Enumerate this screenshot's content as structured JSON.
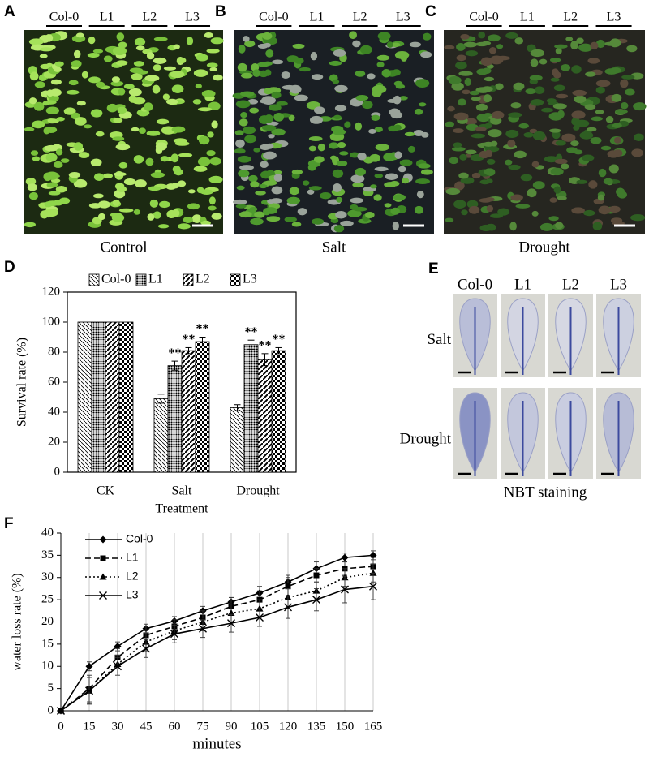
{
  "panels": [
    {
      "letter": "A",
      "columns": [
        "Col-0",
        "L1",
        "L2",
        "L3"
      ],
      "caption": "Control"
    },
    {
      "letter": "B",
      "columns": [
        "Col-0",
        "L1",
        "L2",
        "L3"
      ],
      "caption": "Salt"
    },
    {
      "letter": "C",
      "columns": [
        "Col-0",
        "L1",
        "L2",
        "L3"
      ],
      "caption": "Drought"
    }
  ],
  "nbt": {
    "letter": "E",
    "columns": [
      "Col-0",
      "L1",
      "L2",
      "L3"
    ],
    "rows": [
      "Salt",
      "Drought"
    ],
    "caption": "NBT staining"
  },
  "chart_data": [
    {
      "type": "bar",
      "panel_label": "D",
      "ylabel": "Survival rate (%)",
      "xlabel": "Treatment",
      "categories": [
        "CK",
        "Salt",
        "Drought"
      ],
      "ylim": [
        0,
        120
      ],
      "yticks": [
        0,
        20,
        40,
        60,
        80,
        100,
        120
      ],
      "series": [
        {
          "name": "Col-0",
          "color": "#000000",
          "hatch": "back",
          "values": [
            100,
            49,
            43
          ],
          "errors": [
            0,
            3,
            2
          ],
          "significance": [
            null,
            null,
            null
          ]
        },
        {
          "name": "L1",
          "color": "#000000",
          "hatch": "dots",
          "values": [
            100,
            71,
            85
          ],
          "errors": [
            0,
            3,
            3
          ],
          "significance": [
            null,
            "**",
            "**"
          ]
        },
        {
          "name": "L2",
          "color": "#000000",
          "hatch": "fwd",
          "values": [
            100,
            81,
            75
          ],
          "errors": [
            0,
            2,
            4
          ],
          "significance": [
            null,
            "**",
            "**"
          ]
        },
        {
          "name": "L3",
          "color": "#000000",
          "hatch": "checker",
          "values": [
            100,
            87,
            81
          ],
          "errors": [
            0,
            3,
            2
          ],
          "significance": [
            null,
            "**",
            "**"
          ]
        }
      ]
    },
    {
      "type": "line",
      "panel_label": "F",
      "ylabel": "water loss rate (%)",
      "xlabel": "minutes",
      "x": [
        0,
        15,
        30,
        45,
        60,
        75,
        90,
        105,
        120,
        135,
        150,
        165
      ],
      "xlim": [
        0,
        165
      ],
      "xticks": [
        0,
        15,
        30,
        45,
        60,
        75,
        90,
        105,
        120,
        135,
        150,
        165
      ],
      "ylim": [
        0,
        40
      ],
      "yticks": [
        0,
        5,
        10,
        15,
        20,
        25,
        30,
        35,
        40
      ],
      "grid": true,
      "series": [
        {
          "name": "Col-0",
          "color": "#000000",
          "dash": "solid",
          "marker": "diamond",
          "values": [
            0,
            10,
            14.5,
            18.5,
            20.2,
            22.5,
            24.5,
            26.5,
            29,
            32,
            34.5,
            35
          ],
          "errors": [
            0,
            1,
            1,
            1,
            1,
            1,
            1,
            1.5,
            1.5,
            1.5,
            1,
            1
          ]
        },
        {
          "name": "L1",
          "color": "#000000",
          "dash": "dashed",
          "marker": "square",
          "values": [
            0,
            5,
            12,
            17,
            19,
            21,
            23.5,
            25,
            28,
            30.5,
            32,
            32.5
          ],
          "errors": [
            0,
            3,
            2,
            2,
            1.5,
            1.5,
            2,
            2,
            2,
            1.5,
            1.5,
            2
          ]
        },
        {
          "name": "L2",
          "color": "#000000",
          "dash": "dotted",
          "marker": "triangle",
          "values": [
            0,
            4.5,
            10.5,
            15.5,
            18,
            20,
            22,
            23,
            25.5,
            27,
            30,
            31
          ],
          "errors": [
            0,
            3,
            2,
            2,
            2,
            2,
            2,
            2,
            2,
            2,
            2,
            2
          ]
        },
        {
          "name": "L3",
          "color": "#000000",
          "dash": "solid",
          "marker": "x",
          "values": [
            0,
            4.5,
            10,
            14,
            17.3,
            18.5,
            19.7,
            21,
            23.3,
            25,
            27.3,
            28
          ],
          "errors": [
            0,
            3,
            2,
            2,
            2,
            2,
            2,
            2,
            2.5,
            2.5,
            3,
            3
          ]
        }
      ]
    }
  ]
}
